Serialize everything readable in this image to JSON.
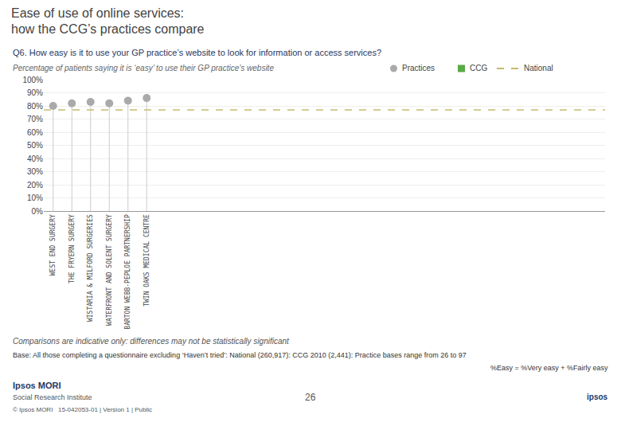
{
  "chart_data": {
    "type": "scatter",
    "title": "Ease of use of online services:\nhow the CCG’s practices compare",
    "subtitle": "Q6. How easy is it to use your GP practice’s website to look for information or access services?",
    "ylabel": "Percentage of patients saying it is ‘easy’ to use their GP practice’s website",
    "categories": [
      "WEST END SURGERY",
      "THE FRYERN SURGERY",
      "WISTARIA & MILFORD SURGERIES",
      "WATERFRONT AND SOLENT SURGERY",
      "BARTON WEBB-PEPLOE PARTNERSHIP",
      "TWIN OAKS MEDICAL CENTRE",
      null,
      null,
      null,
      null,
      null,
      null,
      null,
      null,
      null,
      null,
      null,
      null,
      null,
      null,
      null,
      null,
      null,
      null,
      null,
      null,
      null,
      null,
      null,
      null
    ],
    "series": [
      {
        "name": "Practices",
        "color": "#aaaaaa",
        "marker": "circle",
        "values": [
          80,
          82,
          83,
          82,
          84,
          86,
          null,
          null,
          null,
          null,
          null,
          null,
          null,
          null,
          null,
          null,
          null,
          null,
          null,
          null,
          null,
          null,
          null,
          null,
          null,
          null,
          null,
          null,
          null,
          null
        ]
      }
    ],
    "reference_lines": [
      {
        "name": "National",
        "value": 77,
        "color": "#c8b96e",
        "line_style": "dashed"
      }
    ],
    "legend_items": [
      {
        "name": "CCG",
        "color": "#5aaa46",
        "marker": "square"
      }
    ],
    "ylim": [
      0,
      100
    ],
    "yticks": [
      {
        "value": 0,
        "label": "0%"
      },
      {
        "value": 10,
        "label": "10%"
      },
      {
        "value": 20,
        "label": "20%"
      },
      {
        "value": 30,
        "label": "30%"
      },
      {
        "value": 40,
        "label": "40%"
      },
      {
        "value": 50,
        "label": "50%"
      },
      {
        "value": 60,
        "label": "60%"
      },
      {
        "value": 70,
        "label": "70%"
      },
      {
        "value": 80,
        "label": "80%"
      },
      {
        "value": 90,
        "label": "90%"
      },
      {
        "value": 100,
        "label": "100%"
      }
    ],
    "grid": true,
    "comparisons_text": "Comparisons are indicative only: differences may not be statistically significant",
    "base_text": "Base: All those completing a questionnaire excluding ‘Haven’t tried’: National (260,917): CCG 2010 (2,441): Practice bases range from 26 to 97",
    "base_right": "%Easy = %Very easy + %Fairly easy",
    "footer_texts": [
      "Ipsos MORI",
      "Social Research Institute",
      "© Ipsos MORI   15-042053-01 | Version 1 | Public"
    ],
    "page_number": "26",
    "logo_text": "ipsos"
  }
}
